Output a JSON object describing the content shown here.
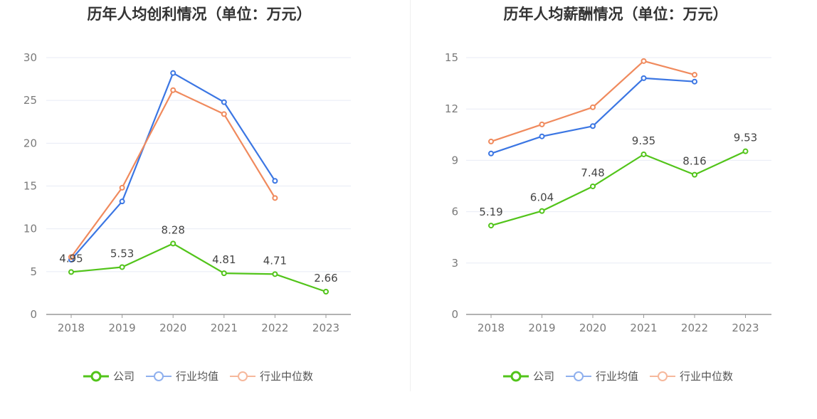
{
  "colors": {
    "company": "#52c41a",
    "industry_avg": "#3b76e3",
    "industry_median": "#f08a5d",
    "grid": "#e8ebf5",
    "axis": "#999999"
  },
  "legend": {
    "company": "公司",
    "industry_avg": "行业均值",
    "industry_median": "行业中位数"
  },
  "chart_data": [
    {
      "type": "line",
      "title": "历年人均创利情况（单位：万元）",
      "categories": [
        "2018",
        "2019",
        "2020",
        "2021",
        "2022",
        "2023"
      ],
      "ylim": [
        0,
        30
      ],
      "yticks": [
        0,
        5,
        10,
        15,
        20,
        25,
        30
      ],
      "grid": true,
      "legend_position": "bottom",
      "series": [
        {
          "name": "公司",
          "values": [
            4.95,
            5.53,
            8.28,
            4.81,
            4.71,
            2.66
          ],
          "labels": [
            "4.95",
            "5.53",
            "8.28",
            "4.81",
            "4.71",
            "2.66"
          ]
        },
        {
          "name": "行业均值",
          "values": [
            6.4,
            13.2,
            28.2,
            24.8,
            15.6,
            null
          ]
        },
        {
          "name": "行业中位数",
          "values": [
            6.7,
            14.8,
            26.2,
            23.4,
            13.6,
            null
          ]
        }
      ]
    },
    {
      "type": "line",
      "title": "历年人均薪酬情况（单位：万元）",
      "categories": [
        "2018",
        "2019",
        "2020",
        "2021",
        "2022",
        "2023"
      ],
      "ylim": [
        0,
        15
      ],
      "yticks": [
        0,
        3,
        6,
        9,
        12,
        15
      ],
      "grid": true,
      "legend_position": "bottom",
      "series": [
        {
          "name": "公司",
          "values": [
            5.19,
            6.04,
            7.48,
            9.35,
            8.16,
            9.53
          ],
          "labels": [
            "5.19",
            "6.04",
            "7.48",
            "9.35",
            "8.16",
            "9.53"
          ]
        },
        {
          "name": "行业均值",
          "values": [
            9.4,
            10.4,
            11.0,
            13.8,
            13.6,
            null
          ]
        },
        {
          "name": "行业中位数",
          "values": [
            10.1,
            11.1,
            12.1,
            14.8,
            14.0,
            null
          ]
        }
      ]
    }
  ]
}
